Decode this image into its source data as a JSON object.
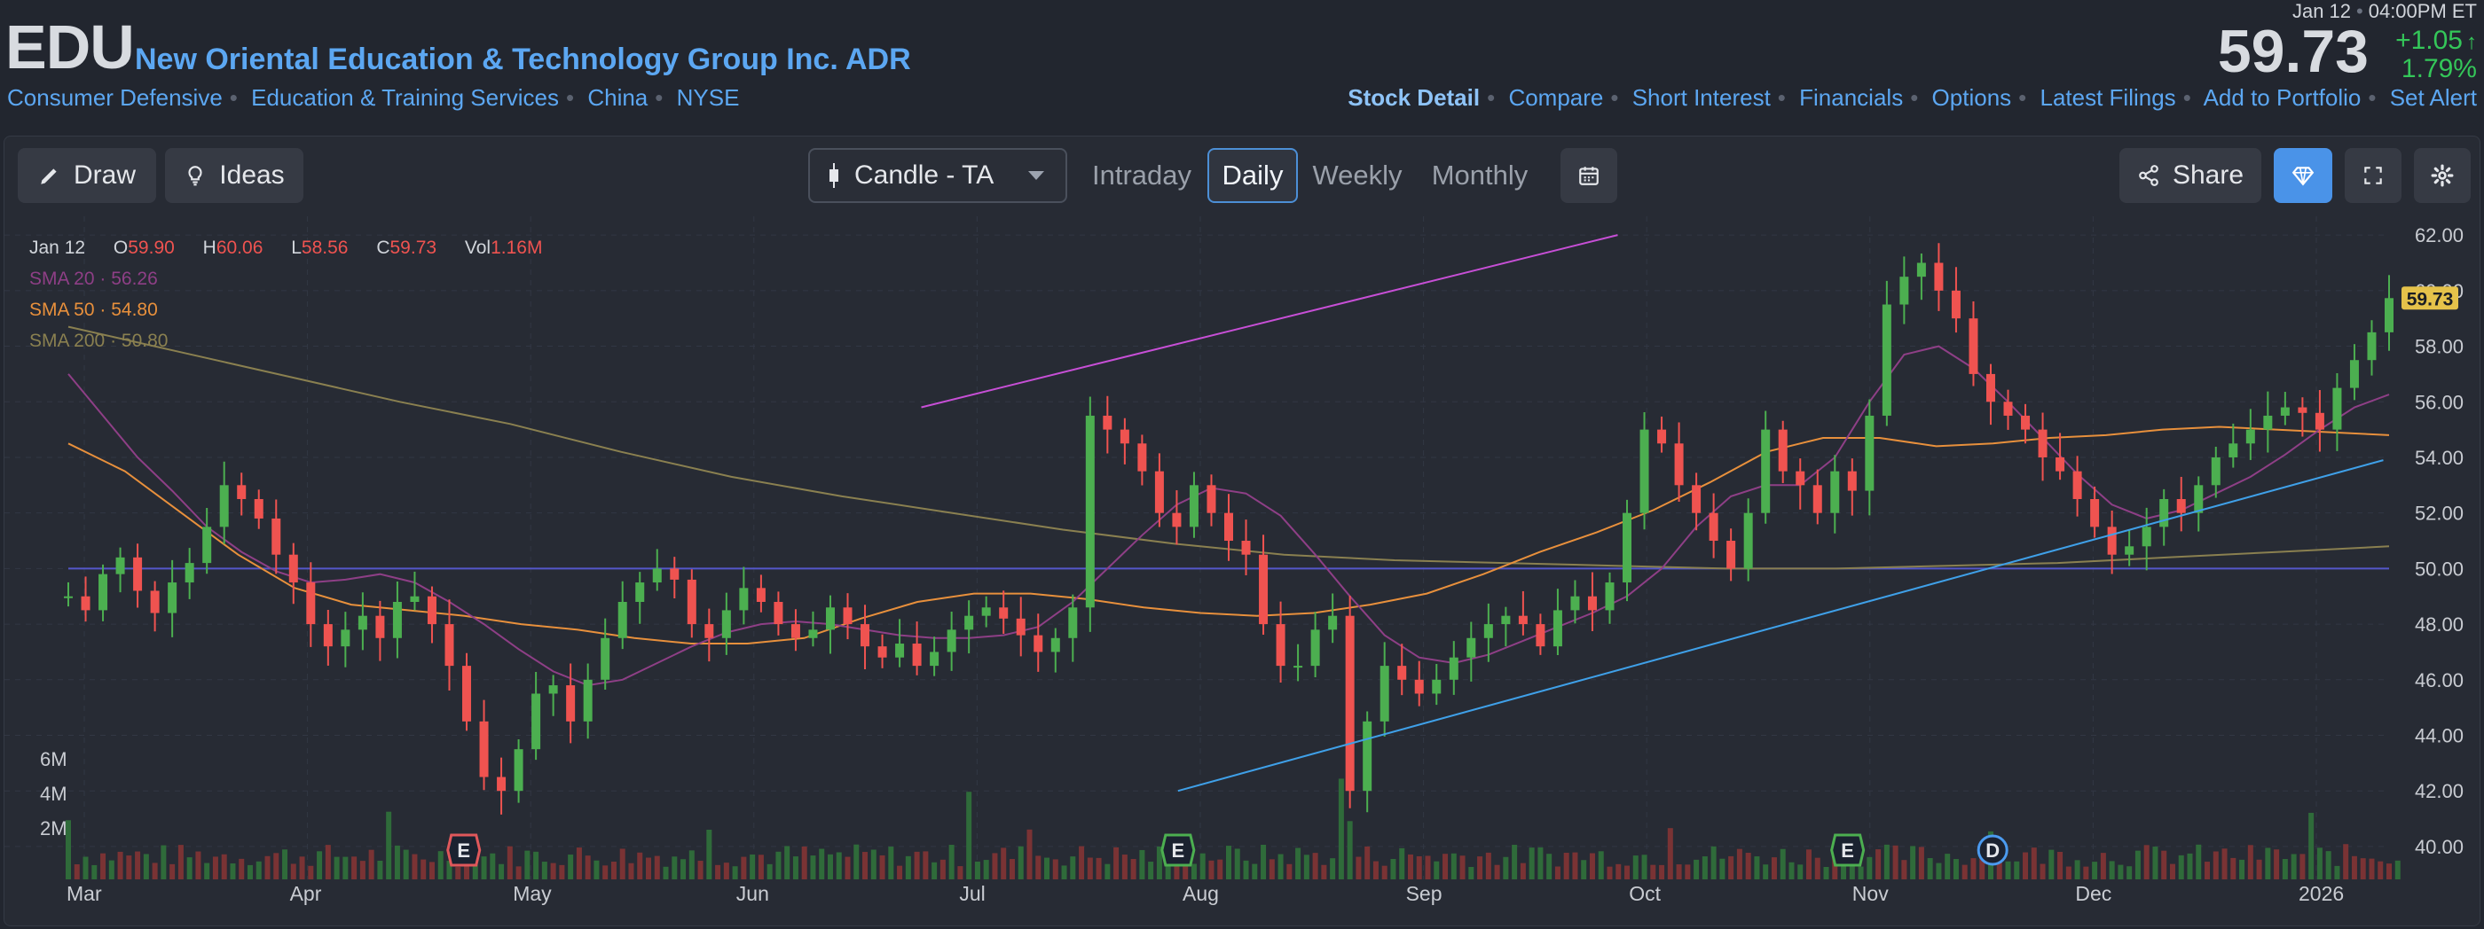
{
  "header": {
    "ticker": "EDU",
    "company": "New Oriental Education & Technology Group Inc. ADR",
    "tags": [
      "Consumer Defensive",
      "Education & Training Services",
      "China",
      "NYSE"
    ],
    "date": "Jan 12",
    "time": "04:00PM ET",
    "price": "59.73",
    "change": "+1.05",
    "change_pct": "1.79%",
    "nav": [
      "Stock Detail",
      "Compare",
      "Short Interest",
      "Financials",
      "Options",
      "Latest Filings",
      "Add to Portfolio",
      "Set Alert"
    ]
  },
  "toolbar": {
    "draw_label": "Draw",
    "ideas_label": "Ideas",
    "chart_type": "Candle - TA",
    "timeframes": [
      "Intraday",
      "Daily",
      "Weekly",
      "Monthly"
    ],
    "active_timeframe": "Daily",
    "share_label": "Share"
  },
  "legend": {
    "date": "Jan 12",
    "o_label": "O",
    "o": "59.90",
    "h_label": "H",
    "h": "60.06",
    "l_label": "L",
    "l": "58.56",
    "c_label": "C",
    "c": "59.73",
    "vol_label": "Vol",
    "vol": "1.16M",
    "sma20_label": "SMA 20",
    "sma20": "56.26",
    "sma50_label": "SMA 50",
    "sma50": "54.80",
    "sma200_label": "SMA 200",
    "sma200": "50.80"
  },
  "colors": {
    "up": "#4caf50",
    "down": "#ef5350",
    "sma20": "#8e3f86",
    "sma50": "#e8903c",
    "sma200": "#8a8050",
    "trend_upper": "#c74fd6",
    "trend_lower": "#3fa0e8",
    "hline": "#5457c9",
    "price_badge": "#e5c24a"
  },
  "chart_data": {
    "type": "candlestick",
    "x_ticks": [
      "Mar",
      "Apr",
      "May",
      "Jun",
      "Jul",
      "Aug",
      "Sep",
      "Oct",
      "Nov",
      "Dec",
      "2026"
    ],
    "y_ticks": [
      "40.00",
      "42.00",
      "44.00",
      "46.00",
      "48.00",
      "50.00",
      "52.00",
      "54.00",
      "56.00",
      "58.00",
      "60.00",
      "62.00"
    ],
    "ylim": [
      39.2,
      62.1
    ],
    "last_price_label": "59.73",
    "volume_ticks": [
      "2M",
      "4M",
      "6M"
    ],
    "events": [
      {
        "label": "E",
        "type": "earnings",
        "month_pos": 1.7
      },
      {
        "label": "E",
        "type": "earnings",
        "month_pos": 4.9
      },
      {
        "label": "E",
        "type": "earnings",
        "month_pos": 7.9
      },
      {
        "label": "D",
        "type": "dividend",
        "month_pos": 8.55
      }
    ],
    "price_path": [
      49.0,
      48.5,
      49.8,
      50.4,
      49.2,
      48.4,
      49.5,
      50.2,
      51.5,
      53.0,
      52.5,
      51.8,
      50.5,
      49.5,
      48.0,
      47.2,
      47.8,
      48.3,
      47.5,
      48.8,
      49.0,
      48.0,
      46.5,
      44.5,
      42.5,
      42.0,
      43.5,
      45.5,
      45.8,
      44.5,
      46.0,
      47.5,
      48.8,
      49.5,
      50.0,
      49.6,
      48.0,
      47.5,
      48.5,
      49.3,
      48.8,
      48.0,
      47.5,
      47.8,
      48.6,
      48.0,
      47.2,
      46.8,
      47.3,
      46.5,
      47.0,
      47.8,
      48.3,
      48.6,
      48.2,
      47.6,
      47.0,
      47.5,
      48.6,
      55.5,
      55.0,
      54.5,
      53.5,
      52.0,
      51.5,
      53.0,
      52.0,
      51.0,
      50.5,
      48.0,
      46.5,
      46.5,
      47.8,
      48.3,
      42.0,
      44.5,
      46.5,
      46.0,
      45.5,
      46.0,
      46.8,
      47.5,
      48.0,
      48.3,
      48.0,
      47.2,
      48.5,
      49.0,
      48.5,
      49.5,
      52.0,
      55.0,
      54.5,
      53.0,
      52.0,
      51.0,
      50.0,
      52.0,
      55.0,
      53.5,
      53.0,
      52.0,
      53.5,
      52.8,
      55.5,
      59.5,
      60.5,
      61.0,
      60.0,
      59.0,
      57.0,
      56.0,
      55.5,
      55.0,
      54.0,
      53.5,
      52.5,
      51.5,
      50.5,
      50.8,
      51.5,
      52.5,
      52.0,
      53.0,
      54.0,
      54.5,
      55.0,
      55.5,
      55.8,
      55.6,
      55.0,
      56.5,
      57.5,
      58.5,
      59.73
    ],
    "sma20": [
      57.0,
      55.5,
      54.0,
      52.8,
      51.5,
      50.6,
      49.9,
      49.5,
      49.6,
      49.8,
      49.5,
      48.8,
      48.0,
      47.1,
      46.3,
      45.8,
      46.0,
      46.6,
      47.2,
      47.7,
      48.0,
      48.1,
      48.0,
      47.8,
      47.6,
      47.5,
      47.5,
      47.6,
      47.9,
      48.8,
      50.0,
      51.2,
      52.3,
      52.9,
      52.7,
      51.9,
      50.5,
      49.0,
      47.6,
      46.8,
      46.6,
      46.9,
      47.4,
      47.9,
      48.4,
      49.0,
      50.0,
      51.5,
      52.6,
      53.0,
      53.0,
      54.0,
      56.0,
      57.7,
      58.0,
      57.2,
      56.0,
      54.7,
      53.4,
      52.3,
      51.8,
      52.1,
      52.7,
      53.3,
      54.1,
      55.0,
      55.8,
      56.26
    ],
    "sma50": [
      54.5,
      53.5,
      52.0,
      50.5,
      49.3,
      48.7,
      48.5,
      48.3,
      48.0,
      47.8,
      47.5,
      47.3,
      47.3,
      47.5,
      48.2,
      48.8,
      49.1,
      49.1,
      48.9,
      48.6,
      48.4,
      48.3,
      48.4,
      48.7,
      49.1,
      49.8,
      50.6,
      51.3,
      52.1,
      53.1,
      54.2,
      54.7,
      54.7,
      54.4,
      54.5,
      54.7,
      54.8,
      55.0,
      55.1,
      55.0,
      54.9,
      54.8
    ],
    "sma200": [
      58.7,
      57.8,
      56.9,
      56.0,
      55.2,
      54.2,
      53.3,
      52.6,
      52.0,
      51.4,
      50.9,
      50.5,
      50.3,
      50.2,
      50.1,
      50.0,
      50.0,
      50.1,
      50.2,
      50.4,
      50.6,
      50.8
    ],
    "trendline_upper": {
      "from": [
        3.75,
        55.8
      ],
      "to": [
        6.87,
        62.0
      ]
    },
    "trendline_lower": {
      "from": [
        4.9,
        42.0
      ],
      "to": [
        10.3,
        53.9
      ]
    },
    "horizontal_line": 50.0
  }
}
